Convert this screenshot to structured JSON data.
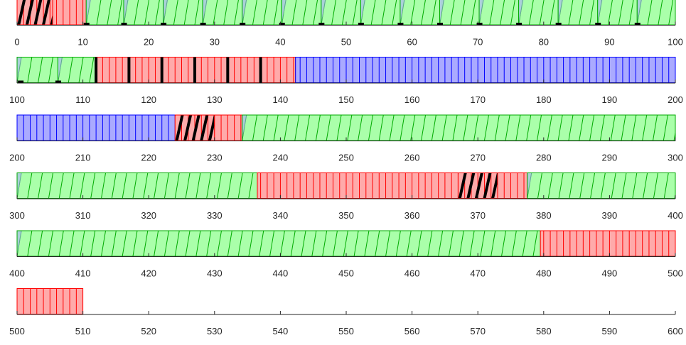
{
  "chart_data": {
    "type": "timeline",
    "title": "",
    "xlabel": "",
    "ylabel": "",
    "colors": {
      "blue": "#aaaaff",
      "blue_line": "#0000ff",
      "green": "#aaffaa",
      "green_line": "#00aa00",
      "red": "#ffaaaa",
      "red_line": "#ff0000",
      "black": "#000000"
    },
    "rows": [
      {
        "range": [
          0,
          100
        ],
        "ticks": [
          "0",
          "10",
          "20",
          "30",
          "40",
          "50",
          "60",
          "70",
          "80",
          "90",
          "100"
        ],
        "segments": [
          {
            "start": 0,
            "end": 5.4,
            "type": "black_hatch"
          },
          {
            "start": 5.4,
            "end": 10.5,
            "type": "red"
          },
          {
            "start": 10.5,
            "end": 16.2,
            "type": "green"
          },
          {
            "start": 16.2,
            "end": 22.2,
            "type": "green"
          },
          {
            "start": 22.2,
            "end": 28.2,
            "type": "green"
          },
          {
            "start": 28.2,
            "end": 34.2,
            "type": "green"
          },
          {
            "start": 34.2,
            "end": 40.2,
            "type": "green"
          },
          {
            "start": 40.2,
            "end": 46.2,
            "type": "green"
          },
          {
            "start": 46.2,
            "end": 52.2,
            "type": "green"
          },
          {
            "start": 52.2,
            "end": 58.2,
            "type": "green"
          },
          {
            "start": 58.2,
            "end": 64.2,
            "type": "green"
          },
          {
            "start": 64.2,
            "end": 70.2,
            "type": "green"
          },
          {
            "start": 70.2,
            "end": 76.2,
            "type": "green"
          },
          {
            "start": 76.2,
            "end": 82.2,
            "type": "green"
          },
          {
            "start": 82.2,
            "end": 88.2,
            "type": "green"
          },
          {
            "start": 88.2,
            "end": 94.2,
            "type": "green"
          },
          {
            "start": 94.2,
            "end": 100,
            "type": "green"
          }
        ],
        "markers": [
          10.5,
          16.2,
          22.2,
          28.2,
          34.2,
          40.2,
          46.2,
          52.2,
          58.2,
          64.2,
          70.2,
          76.2,
          82.2,
          88.2,
          94.2
        ]
      },
      {
        "range": [
          100,
          200
        ],
        "ticks": [
          "100",
          "110",
          "120",
          "130",
          "140",
          "150",
          "160",
          "170",
          "180",
          "190",
          "200"
        ],
        "segments": [
          {
            "start": 100,
            "end": 106.2,
            "type": "green"
          },
          {
            "start": 106.2,
            "end": 112,
            "type": "green"
          },
          {
            "start": 112,
            "end": 142.3,
            "type": "red"
          },
          {
            "start": 142.3,
            "end": 200,
            "type": "blue"
          }
        ],
        "markers": [
          100.5,
          106.2
        ],
        "black_bars": [
          112,
          117,
          122,
          127,
          132,
          137
        ]
      },
      {
        "range": [
          200,
          300
        ],
        "ticks": [
          "200",
          "210",
          "220",
          "230",
          "240",
          "250",
          "260",
          "270",
          "280",
          "290",
          "300"
        ],
        "segments": [
          {
            "start": 200,
            "end": 224,
            "type": "blue"
          },
          {
            "start": 224,
            "end": 230,
            "type": "black_hatch"
          },
          {
            "start": 230,
            "end": 234.2,
            "type": "red"
          },
          {
            "start": 234.2,
            "end": 300,
            "type": "green"
          }
        ]
      },
      {
        "range": [
          300,
          400
        ],
        "ticks": [
          "300",
          "310",
          "320",
          "330",
          "340",
          "350",
          "360",
          "370",
          "380",
          "390",
          "400"
        ],
        "segments": [
          {
            "start": 300,
            "end": 336.5,
            "type": "green"
          },
          {
            "start": 336.5,
            "end": 367,
            "type": "red"
          },
          {
            "start": 367,
            "end": 373,
            "type": "black_hatch"
          },
          {
            "start": 373,
            "end": 377.5,
            "type": "red"
          },
          {
            "start": 377.5,
            "end": 400,
            "type": "green"
          }
        ]
      },
      {
        "range": [
          400,
          500
        ],
        "ticks": [
          "400",
          "410",
          "420",
          "430",
          "440",
          "450",
          "460",
          "470",
          "480",
          "490",
          "500"
        ],
        "segments": [
          {
            "start": 400,
            "end": 479.5,
            "type": "green"
          },
          {
            "start": 479.5,
            "end": 500,
            "type": "red"
          }
        ]
      },
      {
        "range": [
          500,
          600
        ],
        "ticks": [
          "500",
          "510",
          "520",
          "530",
          "540",
          "550",
          "560",
          "570",
          "580",
          "590",
          "600"
        ],
        "segments": [
          {
            "start": 500,
            "end": 510,
            "type": "red"
          }
        ]
      }
    ]
  }
}
